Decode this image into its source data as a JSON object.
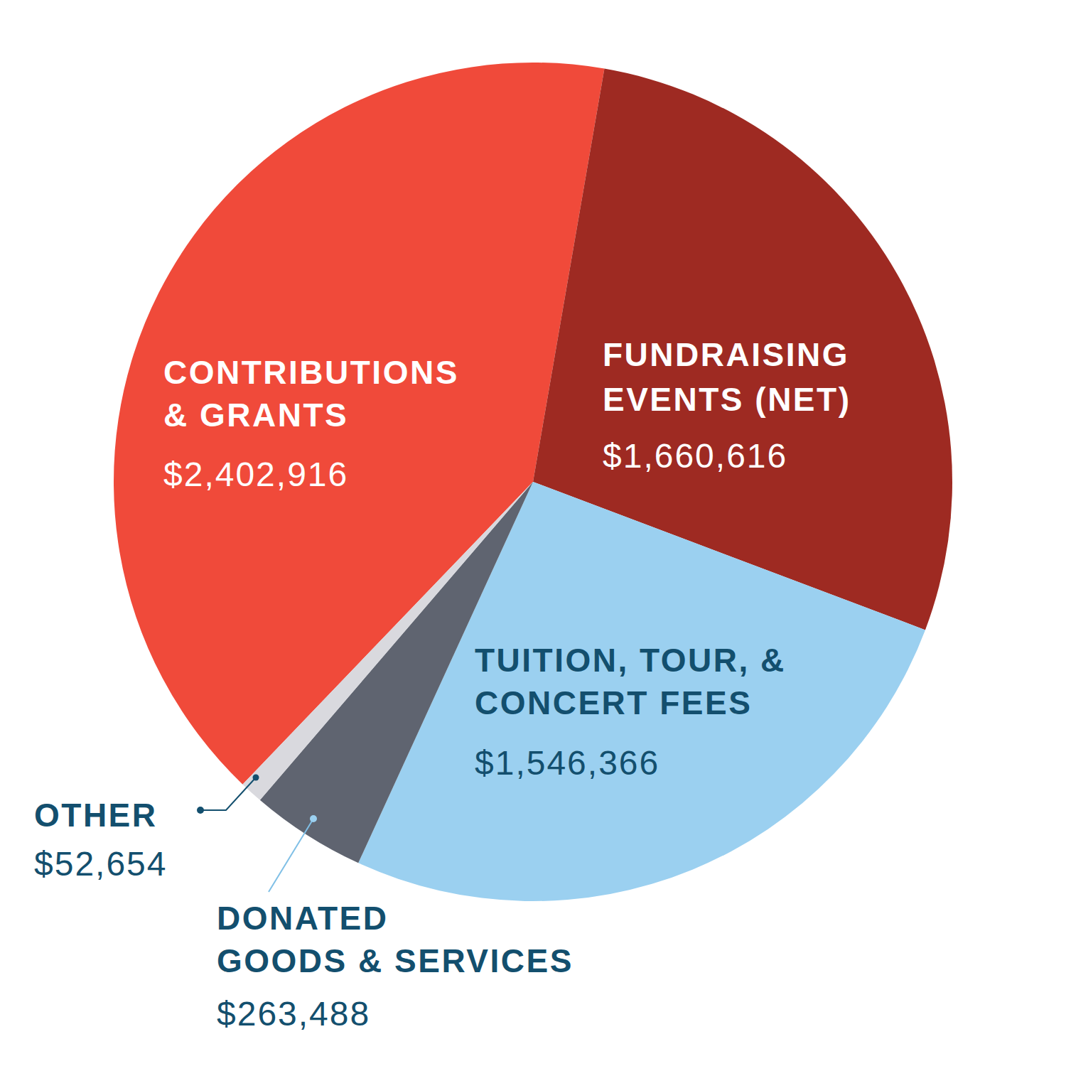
{
  "chart_data": {
    "type": "pie",
    "categories": [
      "CONTRIBUTIONS & GRANTS",
      "FUNDRAISING EVENTS (NET)",
      "TUITION, TOUR, & CONCERT FEES",
      "DONATED GOODS & SERVICES",
      "OTHER"
    ],
    "values": [
      2402916,
      1660616,
      1546366,
      263488,
      52654
    ],
    "value_labels": [
      "$2,402,916",
      "$1,660,616",
      "$1,546,366",
      "$263,488",
      "$52,654"
    ],
    "colors": [
      "#f04a3a",
      "#9e2a22",
      "#9bd0f0",
      "#5f6470",
      "#d9d9de"
    ],
    "data_labels": true
  }
}
